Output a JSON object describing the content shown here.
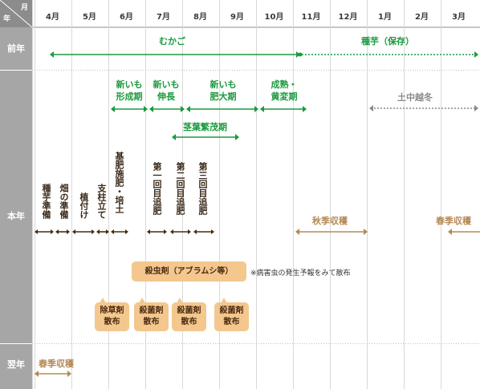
{
  "header": {
    "corner_month": "月",
    "corner_year": "年",
    "months": [
      "4月",
      "5月",
      "6月",
      "7月",
      "8月",
      "9月",
      "10月",
      "11月",
      "12月",
      "1月",
      "2月",
      "3月"
    ]
  },
  "rows": {
    "prev_year": "前年",
    "this_year": "本年",
    "next_year": "翌年"
  },
  "prev_year_bars": {
    "mukago": "むかご",
    "seed_tuber": "種芋（保存）"
  },
  "stages": {
    "formation": [
      "新いも",
      "形成期"
    ],
    "elongation": [
      "新いも",
      "伸長"
    ],
    "enlargement": [
      "新いも",
      "肥大期"
    ],
    "maturation": [
      "成熟・",
      "黄変期"
    ],
    "overwinter": "土中越冬",
    "foliage": "茎葉繁茂期"
  },
  "tasks": {
    "seed_prep": [
      "種",
      "芋",
      "準",
      "備"
    ],
    "field_prep": [
      "畑",
      "の",
      "準",
      "備"
    ],
    "planting": [
      "植",
      "付",
      "け"
    ],
    "staking": [
      "支",
      "柱",
      "立",
      "て"
    ],
    "basal_fert": [
      "基",
      "肥",
      "施",
      "肥",
      "・",
      "培",
      "土"
    ],
    "topdress1": [
      "第",
      "一",
      "回",
      "目",
      "追",
      "肥"
    ],
    "topdress2": [
      "第",
      "二",
      "回",
      "目",
      "追",
      "肥"
    ],
    "topdress3": [
      "第",
      "三",
      "回",
      "目",
      "追",
      "肥"
    ],
    "autumn_harvest": "秋季収穫",
    "spring_harvest": "春季収穫"
  },
  "pest": {
    "insecticide": "殺虫剤（アブラムシ等）",
    "note": "※病害虫の発生予報をみて散布",
    "herbicide": [
      "除草剤",
      "散布"
    ],
    "fungicide": [
      "殺菌剤",
      "散布"
    ]
  },
  "next_year_bars": {
    "spring_harvest": "春季収穫"
  },
  "colors": {
    "header_bg": "#8c8c8c",
    "row_header": "#a6a6a6",
    "grid": "#d9d9d9",
    "green": "#1c9a3e",
    "dark_brown": "#4a2a10",
    "light_brown": "#b58a56",
    "gray_dot": "#8a8a8a",
    "box": "#f3c78d"
  }
}
